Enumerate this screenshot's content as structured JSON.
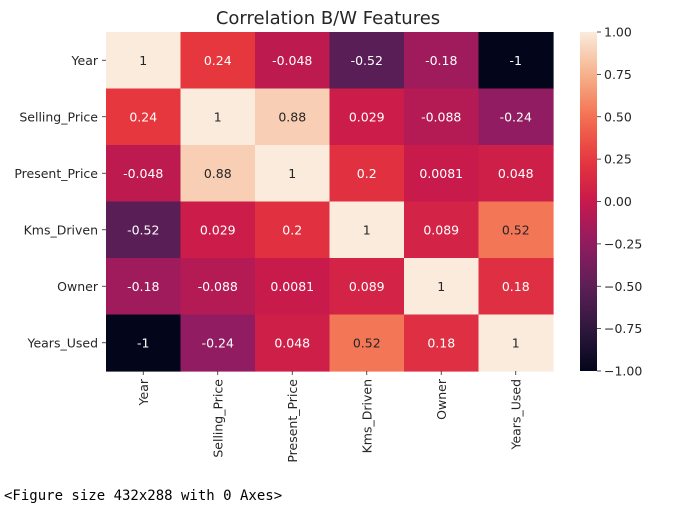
{
  "chart_data": {
    "type": "heatmap",
    "title": "Correlation B/W Features",
    "rows": [
      "Year",
      "Selling_Price",
      "Present_Price",
      "Kms_Driven",
      "Owner",
      "Years_Used"
    ],
    "cols": [
      "Year",
      "Selling_Price",
      "Present_Price",
      "Kms_Driven",
      "Owner",
      "Years_Used"
    ],
    "values": [
      [
        1,
        0.24,
        -0.048,
        -0.52,
        -0.18,
        -1
      ],
      [
        0.24,
        1,
        0.88,
        0.029,
        -0.088,
        -0.24
      ],
      [
        -0.048,
        0.88,
        1,
        0.2,
        0.0081,
        0.048
      ],
      [
        -0.52,
        0.029,
        0.2,
        1,
        0.089,
        0.52
      ],
      [
        -0.18,
        -0.088,
        0.0081,
        0.089,
        1,
        0.18
      ],
      [
        -1,
        -0.24,
        0.048,
        0.52,
        0.18,
        1
      ]
    ],
    "labels": [
      [
        "1",
        "0.24",
        "-0.048",
        "-0.52",
        "-0.18",
        "-1"
      ],
      [
        "0.24",
        "1",
        "0.88",
        "0.029",
        "-0.088",
        "-0.24"
      ],
      [
        "-0.048",
        "0.88",
        "1",
        "0.2",
        "0.0081",
        "0.048"
      ],
      [
        "-0.52",
        "0.029",
        "0.2",
        "1",
        "0.089",
        "0.52"
      ],
      [
        "-0.18",
        "-0.088",
        "0.0081",
        "0.089",
        "1",
        "0.18"
      ],
      [
        "-1",
        "-0.24",
        "0.048",
        "0.52",
        "0.18",
        "1"
      ]
    ],
    "vmin": -1,
    "vmax": 1,
    "colormap": "rocket",
    "colorbar_ticks": [
      "1.00",
      "0.75",
      "0.50",
      "0.25",
      "0.00",
      "−0.25",
      "−0.50",
      "−0.75",
      "−1.00"
    ],
    "colorbar_tick_values": [
      1,
      0.75,
      0.5,
      0.25,
      0,
      -0.25,
      -0.5,
      -0.75,
      -1
    ]
  },
  "footer_text": "<Figure size 432x288 with 0 Axes>"
}
